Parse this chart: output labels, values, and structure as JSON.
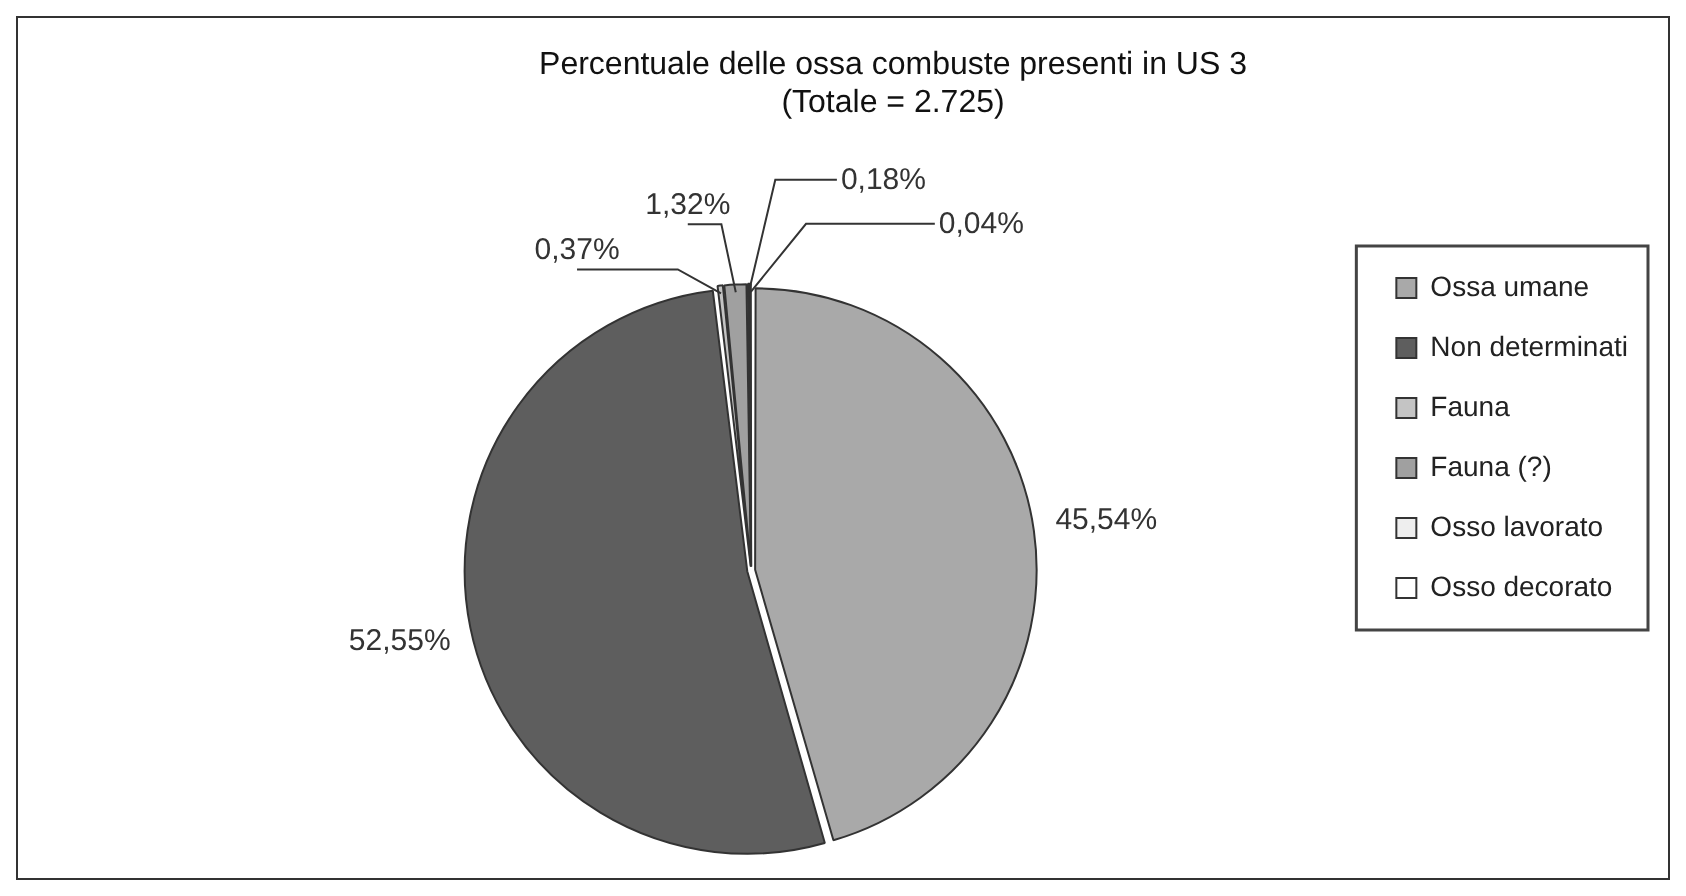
{
  "chart_data": {
    "type": "pie",
    "title": "Percentuale delle ossa combuste presenti in US 3",
    "subtitle": "(Totale = 2.725)",
    "categories": [
      "Ossa umane",
      "Non determinati",
      "Fauna",
      "Fauna (?)",
      "Osso lavorato",
      "Osso decorato"
    ],
    "values": [
      45.54,
      52.55,
      0.37,
      1.32,
      0.18,
      0.04
    ],
    "colors": [
      "#a9a9a9",
      "#5e5e5e",
      "#c4c4c4",
      "#a0a0a0",
      "#eeeeee",
      "#ffffff"
    ],
    "value_labels": [
      "45,54%",
      "52,55%",
      "0,37%",
      "1,32%",
      "0,18%",
      "0,04%"
    ],
    "legend": "right"
  }
}
